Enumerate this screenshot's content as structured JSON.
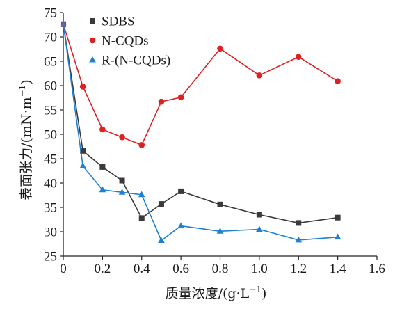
{
  "chart_data": {
    "type": "line",
    "x": [
      0,
      0.1,
      0.2,
      0.3,
      0.4,
      0.5,
      0.6,
      0.8,
      1.0,
      1.2,
      1.4
    ],
    "xlabel": {
      "text": "质量浓度/(g·L",
      "sup": "−1",
      "close": ")"
    },
    "ylabel": {
      "text": "表面张力/(mN·m",
      "sup": "−1",
      "close": ")"
    },
    "xlim": [
      0,
      1.6
    ],
    "ylim": [
      25,
      75
    ],
    "xticks": [
      0,
      0.2,
      0.4,
      0.6,
      0.8,
      1.0,
      1.2,
      1.4,
      1.6
    ],
    "xtick_labels": [
      "0",
      "0.2",
      "0.4",
      "0.6",
      "0.8",
      "1.0",
      "1.2",
      "1.4",
      "1.6"
    ],
    "yticks": [
      25,
      30,
      35,
      40,
      45,
      50,
      55,
      60,
      65,
      70,
      75
    ],
    "yticks_labels": [
      "25",
      "30",
      "35",
      "40",
      "45",
      "50",
      "55",
      "60",
      "65",
      "70",
      "75"
    ],
    "grid": false,
    "legend_position": "top-left",
    "series": [
      {
        "name": "SDBS",
        "marker": "square",
        "color": "#3a3a3a",
        "x": [
          0,
          0.1,
          0.2,
          0.3,
          0.4,
          0.5,
          0.6,
          0.8,
          1.0,
          1.2,
          1.4
        ],
        "values": [
          72.6,
          46.6,
          43.3,
          40.5,
          32.8,
          35.7,
          38.3,
          35.6,
          33.5,
          31.8,
          32.9
        ]
      },
      {
        "name": "N-CQDs",
        "marker": "circle",
        "color": "#e02020",
        "x": [
          0,
          0.1,
          0.2,
          0.3,
          0.4,
          0.5,
          0.6,
          0.8,
          1.0,
          1.2,
          1.4
        ],
        "values": [
          72.6,
          59.8,
          51.0,
          49.4,
          47.8,
          56.7,
          57.6,
          67.6,
          62.1,
          65.9,
          60.9
        ]
      },
      {
        "name": "R-(N-CQDs)",
        "marker": "triangle",
        "color": "#2080d0",
        "x": [
          0,
          0.1,
          0.2,
          0.3,
          0.4,
          0.5,
          0.6,
          0.8,
          1.0,
          1.2,
          1.4
        ],
        "values": [
          72.6,
          43.5,
          38.6,
          38.1,
          37.6,
          28.2,
          31.2,
          30.1,
          30.5,
          28.3,
          28.9
        ]
      }
    ]
  }
}
